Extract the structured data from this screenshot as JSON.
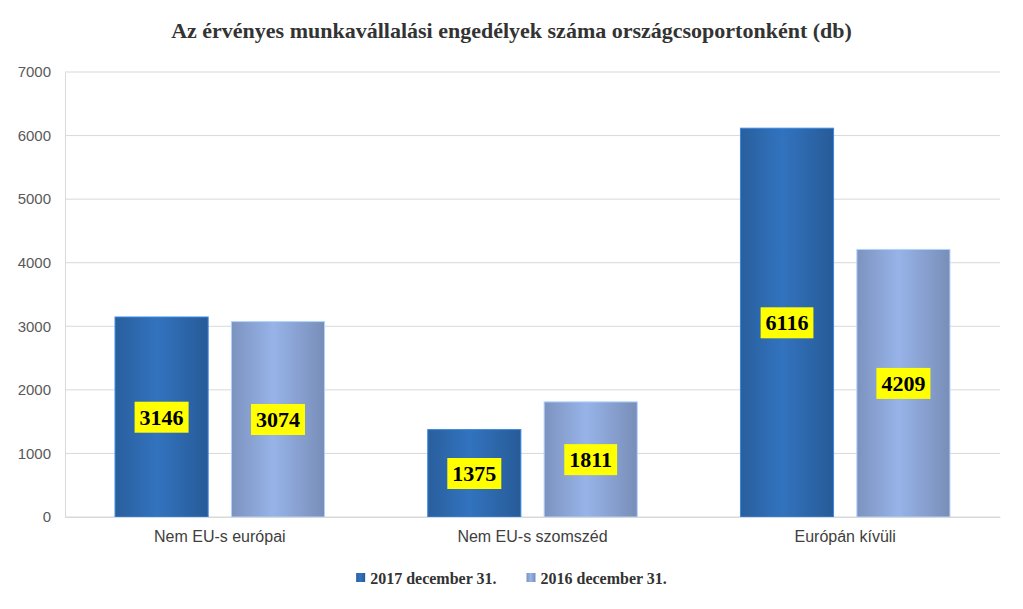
{
  "chart_data": {
    "type": "bar",
    "title": "Az érvényes munkavállalási engedélyek száma országcsoportonként (db)",
    "categories": [
      "Nem EU-s európai",
      "Nem EU-s szomszéd",
      "Európán kívüli"
    ],
    "series": [
      {
        "name": "2017 december 31.",
        "color": "#2f6db5",
        "values": [
          3146,
          1375,
          6116
        ]
      },
      {
        "name": "2016 december 31.",
        "color": "#8faadc",
        "values": [
          3074,
          1811,
          4209
        ]
      }
    ],
    "ylim": [
      0,
      7000
    ],
    "yticks": [
      0,
      1000,
      2000,
      3000,
      4000,
      5000,
      6000,
      7000
    ],
    "grid": true,
    "data_labels": true,
    "legend": "bottom"
  }
}
